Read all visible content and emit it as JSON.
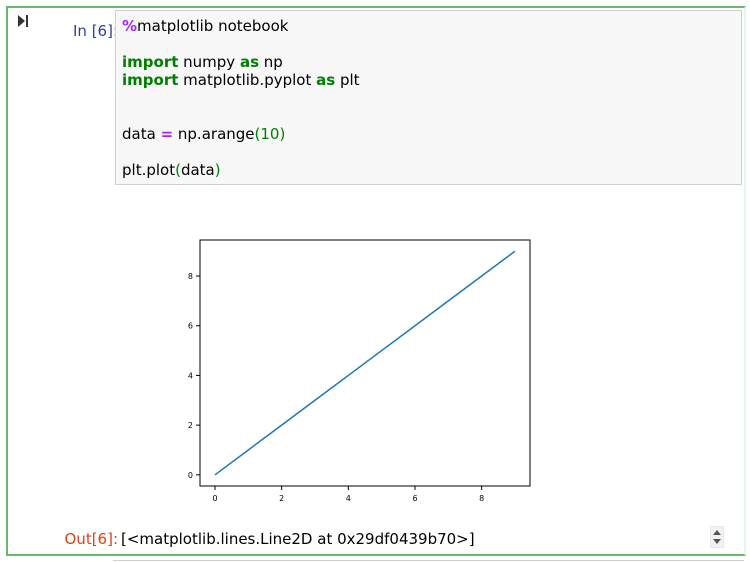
{
  "cell": {
    "in_prompt": "In [6]:",
    "out_prompt": "Out[6]:",
    "output_text": "[<matplotlib.lines.Line2D at 0x29df0439b70>]",
    "code": {
      "magic": "%matplotlib notebook",
      "line2_kw": "import",
      "line2_mod": " numpy ",
      "line2_as": "as",
      "line2_alias": " np",
      "line3_kw": "import",
      "line3_mod": " matplotlib.pyplot ",
      "line3_as": "as",
      "line3_alias": " plt",
      "line4_var": "data ",
      "line4_op": "=",
      "line4_call": " np.arange",
      "line4_paren_open": "(",
      "line4_num": "10",
      "line4_paren_close": ")",
      "line5_call": "plt.plot",
      "line5_paren_open": "(",
      "line5_arg": "data",
      "line5_paren_close": ")"
    }
  },
  "chart_data": {
    "type": "line",
    "x": [
      0,
      1,
      2,
      3,
      4,
      5,
      6,
      7,
      8,
      9
    ],
    "series": [
      {
        "values": [
          0,
          1,
          2,
          3,
          4,
          5,
          6,
          7,
          8,
          9
        ],
        "color": "#1f77b4"
      }
    ],
    "xlim": [
      -0.45,
      9.45
    ],
    "ylim": [
      -0.45,
      9.45
    ],
    "xticks": [
      0,
      2,
      4,
      6,
      8
    ],
    "yticks": [
      0,
      2,
      4,
      6,
      8
    ],
    "grid": false
  },
  "icons": {
    "run": "run-cell-icon",
    "scroll": "output-scroll-arrows-icon"
  }
}
